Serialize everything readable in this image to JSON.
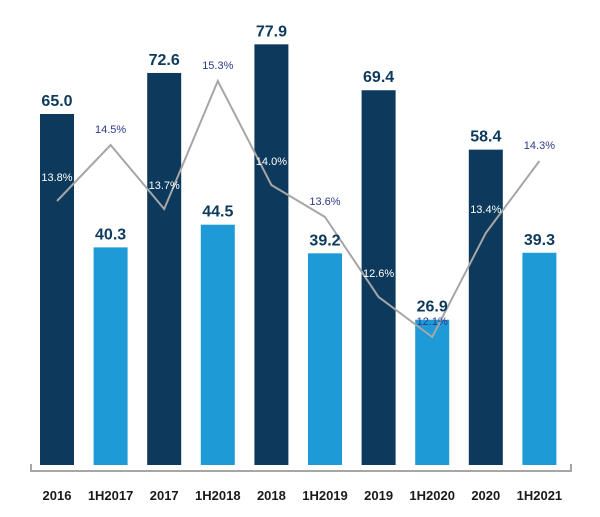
{
  "chart_data": {
    "type": "bar",
    "categories": [
      "2016",
      "1H2017",
      "2017",
      "1H2018",
      "2018",
      "1H2019",
      "2019",
      "1H2020",
      "2020",
      "1H2021"
    ],
    "series": [
      {
        "values": [
          65.0,
          40.3,
          72.6,
          44.5,
          77.9,
          39.2,
          69.4,
          26.9,
          58.4,
          39.3
        ],
        "labels": [
          "65.0",
          "40.3",
          "72.6",
          "44.5",
          "77.9",
          "39.2",
          "69.4",
          "26.9",
          "58.4",
          "39.3"
        ],
        "type": "bar"
      },
      {
        "values": [
          13.8,
          14.5,
          13.7,
          15.3,
          14.0,
          13.6,
          12.6,
          12.1,
          13.4,
          14.3
        ],
        "labels": [
          "13.8%",
          "14.5%",
          "13.7%",
          "15.3%",
          "14.0%",
          "13.6%",
          "12.6%",
          "12.1%",
          "13.4%",
          "14.3%"
        ],
        "type": "line",
        "unit": "%"
      }
    ],
    "bar_colors": {
      "full_year": "#0d3a5c",
      "half_year": "#1e9ad6"
    },
    "line_color": "#a6a6a6",
    "pct_label_colors": {
      "on_dark": "#ffffff",
      "on_white": "#2b3a8c"
    },
    "grid": false,
    "legend": "none"
  }
}
